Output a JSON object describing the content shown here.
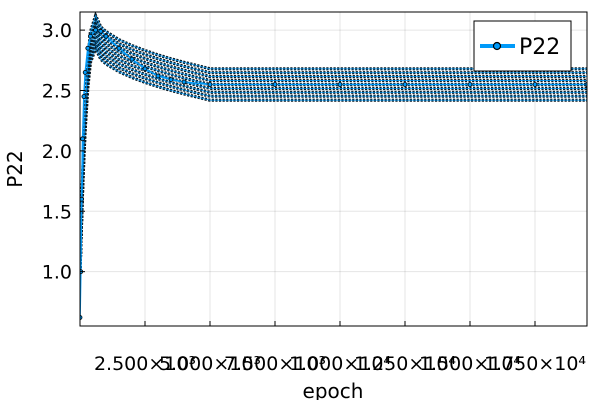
{
  "chart_data": {
    "type": "line",
    "xlabel": "epoch",
    "ylabel": "P22",
    "xlim": [
      0,
      19500
    ],
    "ylim": [
      0.55,
      3.15
    ],
    "x_ticks": [
      2500,
      5000,
      7500,
      10000,
      12500,
      15000,
      17500
    ],
    "x_tick_labels": [
      "2.500×10³",
      "5.000×10³",
      "7.500×10³",
      "1.000×10⁴",
      "1.250×10⁴",
      "1.500×10⁴",
      "1.750×10⁴"
    ],
    "y_ticks": [
      1.0,
      1.5,
      2.0,
      2.5,
      3.0
    ],
    "y_tick_labels": [
      "1.0",
      "1.5",
      "2.0",
      "2.5",
      "3.0"
    ],
    "grid": true,
    "legend_position": "top-right",
    "series": [
      {
        "name": "P22",
        "color": "#009af9",
        "marker": "circle",
        "band": {
          "start_value": 1.0,
          "peak_epoch": 600,
          "peak_low": 2.85,
          "peak_high": 3.12,
          "plateau_from_epoch": 5000,
          "plateau_low": 2.42,
          "plateau_high": 2.68
        },
        "x": [
          0,
          30,
          60,
          100,
          150,
          200,
          300,
          400,
          600,
          800,
          1000,
          1500,
          2000,
          2500,
          3000,
          3500,
          4000,
          5000,
          7500,
          10000,
          12500,
          15000,
          17500,
          19500
        ],
        "y": [
          0.62,
          1.0,
          1.6,
          2.1,
          2.45,
          2.65,
          2.85,
          2.95,
          3.0,
          2.99,
          2.95,
          2.85,
          2.76,
          2.68,
          2.62,
          2.59,
          2.57,
          2.55,
          2.55,
          2.55,
          2.55,
          2.55,
          2.55,
          2.55
        ]
      }
    ]
  }
}
